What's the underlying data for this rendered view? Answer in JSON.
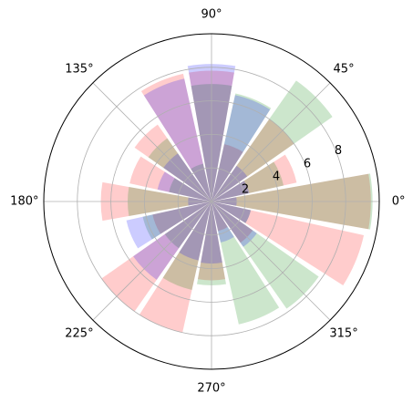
{
  "chart_data": {
    "type": "bar",
    "projection": "polar",
    "theta_unit": "degrees",
    "theta_tick_labels": [
      "0°",
      "45°",
      "90°",
      "135°",
      "180°",
      "225°",
      "270°",
      "315°"
    ],
    "theta_ticks": [
      0,
      45,
      90,
      135,
      180,
      225,
      270,
      315
    ],
    "r_ticks": [
      2,
      4,
      6,
      8
    ],
    "r_tick_labels": [
      "2",
      "4",
      "6",
      "8"
    ],
    "r_label_angle": 22.5,
    "rlim": [
      0,
      10
    ],
    "grid": true,
    "legend": "none",
    "bar_width_deg": 20,
    "bar_alpha": 0.2,
    "series": [
      {
        "color": "#ff0000",
        "bars": [
          {
            "theta": 0,
            "r": 9.5
          },
          {
            "theta": 22.5,
            "r": 5.2
          },
          {
            "theta": 45,
            "r": 6.0
          },
          {
            "theta": 67.5,
            "r": 3.5
          },
          {
            "theta": 90,
            "r": 7.8
          },
          {
            "theta": 112.5,
            "r": 7.8
          },
          {
            "theta": 135,
            "r": 5.6
          },
          {
            "theta": 157.5,
            "r": 5.0
          },
          {
            "theta": 180,
            "r": 6.6
          },
          {
            "theta": 202.5,
            "r": 3.6
          },
          {
            "theta": 225,
            "r": 8.0
          },
          {
            "theta": 247.5,
            "r": 8.0
          },
          {
            "theta": 270,
            "r": 4.7
          },
          {
            "theta": 292.5,
            "r": 1.8
          },
          {
            "theta": 315,
            "r": 3.0
          },
          {
            "theta": 337.5,
            "r": 9.3
          }
        ]
      },
      {
        "color": "#008000",
        "bars": [
          {
            "theta": 0,
            "r": 9.6
          },
          {
            "theta": 22.5,
            "r": 4.4
          },
          {
            "theta": 45,
            "r": 8.8
          },
          {
            "theta": 67.5,
            "r": 6.6
          },
          {
            "theta": 90,
            "r": 7.0
          },
          {
            "theta": 112.5,
            "r": 2.3
          },
          {
            "theta": 135,
            "r": 4.6
          },
          {
            "theta": 157.5,
            "r": 2.6
          },
          {
            "theta": 180,
            "r": 5.0
          },
          {
            "theta": 202.5,
            "r": 4.2
          },
          {
            "theta": 225,
            "r": 3.4
          },
          {
            "theta": 247.5,
            "r": 5.4
          },
          {
            "theta": 270,
            "r": 5.0
          },
          {
            "theta": 292.5,
            "r": 7.5
          },
          {
            "theta": 315,
            "r": 7.8
          },
          {
            "theta": 337.5,
            "r": 2.4
          }
        ]
      },
      {
        "color": "#0000ff",
        "bars": [
          {
            "theta": 0,
            "r": 1.5
          },
          {
            "theta": 22.5,
            "r": 2.3
          },
          {
            "theta": 45,
            "r": 2.6
          },
          {
            "theta": 67.5,
            "r": 6.5
          },
          {
            "theta": 90,
            "r": 8.2
          },
          {
            "theta": 112.5,
            "r": 7.5
          },
          {
            "theta": 135,
            "r": 3.5
          },
          {
            "theta": 157.5,
            "r": 3.3
          },
          {
            "theta": 180,
            "r": 1.4
          },
          {
            "theta": 202.5,
            "r": 5.2
          },
          {
            "theta": 225,
            "r": 5.7
          },
          {
            "theta": 247.5,
            "r": 3.6
          },
          {
            "theta": 270,
            "r": 3.7
          },
          {
            "theta": 292.5,
            "r": 2.5
          },
          {
            "theta": 315,
            "r": 3.3
          },
          {
            "theta": 337.5,
            "r": 2.4
          }
        ]
      }
    ]
  }
}
